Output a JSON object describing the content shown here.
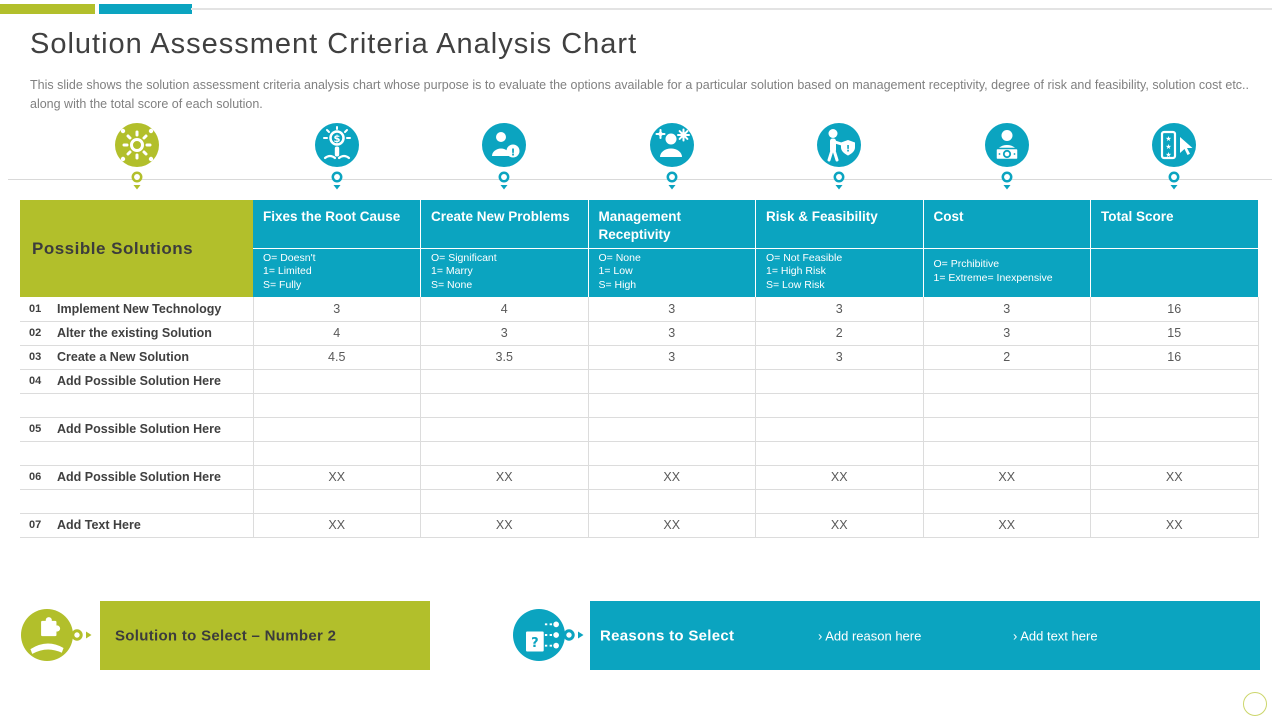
{
  "slide": {
    "title": "Solution Assessment Criteria Analysis Chart",
    "subtitle": "This slide shows the solution assessment criteria analysis chart whose purpose is to evaluate the options available for a particular solution based on management receptivity, degree of risk and feasibility, solution cost etc.. along with the total score of each solution."
  },
  "colors": {
    "olive": "#b2bf2b",
    "teal": "#0ba4c0",
    "title_text": "#404040",
    "subtitle_text": "#808080",
    "value_text": "#595959",
    "grid_line": "#dcdcdc"
  },
  "icons": [
    "solution-process-icon",
    "idea-cost-icon",
    "new-problems-icon",
    "management-receptivity-icon",
    "risk-feasibility-icon",
    "cost-icon",
    "total-score-icon"
  ],
  "table": {
    "row_header": "Possible Solutions",
    "columns": [
      {
        "title": "Fixes the Root Cause",
        "legend": [
          "O= Doesn't",
          "1= Limited",
          "S= Fully"
        ]
      },
      {
        "title": "Create New Problems",
        "legend": [
          "O= Significant",
          "1= Marry",
          "S= None"
        ]
      },
      {
        "title": "Management Receptivity",
        "legend": [
          "O= None",
          "1= Low",
          "S= High"
        ]
      },
      {
        "title": "Risk & Feasibility",
        "legend": [
          "O= Not Feasible",
          "1= High Risk",
          "S= Low Risk"
        ]
      },
      {
        "title": "Cost",
        "legend": [
          "O= Prchibitive",
          "1= Extreme= Inexpensive"
        ]
      },
      {
        "title": "Total Score",
        "legend": []
      }
    ],
    "rows": [
      {
        "num": "01",
        "label": "Implement New Technology",
        "values": [
          "3",
          "4",
          "3",
          "3",
          "3",
          "16"
        ],
        "placeholder": false,
        "spacer": false
      },
      {
        "num": "02",
        "label": "Alter the existing Solution",
        "values": [
          "4",
          "3",
          "3",
          "2",
          "3",
          "15"
        ],
        "placeholder": false,
        "spacer": false
      },
      {
        "num": "03",
        "label": "Create a New Solution",
        "values": [
          "4.5",
          "3.5",
          "3",
          "3",
          "2",
          "16"
        ],
        "placeholder": false,
        "spacer": false
      },
      {
        "num": "04",
        "label": "Add Possible Solution Here",
        "values": [
          "",
          "",
          "",
          "",
          "",
          ""
        ],
        "placeholder": true,
        "spacer": false
      },
      {
        "num": "",
        "label": "",
        "values": [
          "",
          "",
          "",
          "",
          "",
          ""
        ],
        "placeholder": false,
        "spacer": true
      },
      {
        "num": "05",
        "label": "Add Possible Solution Here",
        "values": [
          "",
          "",
          "",
          "",
          "",
          ""
        ],
        "placeholder": true,
        "spacer": false
      },
      {
        "num": "",
        "label": "",
        "values": [
          "",
          "",
          "",
          "",
          "",
          ""
        ],
        "placeholder": false,
        "spacer": true
      },
      {
        "num": "06",
        "label": "Add Possible Solution Here",
        "values": [
          "XX",
          "XX",
          "XX",
          "XX",
          "XX",
          "XX"
        ],
        "placeholder": true,
        "spacer": false
      },
      {
        "num": "",
        "label": "",
        "values": [
          "",
          "",
          "",
          "",
          "",
          ""
        ],
        "placeholder": false,
        "spacer": true
      },
      {
        "num": "07",
        "label": "Add Text Here",
        "values": [
          "XX",
          "XX",
          "XX",
          "XX",
          "XX",
          "XX"
        ],
        "placeholder": true,
        "spacer": false
      }
    ]
  },
  "footer": {
    "solution": {
      "label": "Solution to Select – Number 2"
    },
    "reasons": {
      "label": "Reasons to Select",
      "bullet": "›",
      "items": [
        "Add reason here",
        "Add text here"
      ]
    }
  }
}
